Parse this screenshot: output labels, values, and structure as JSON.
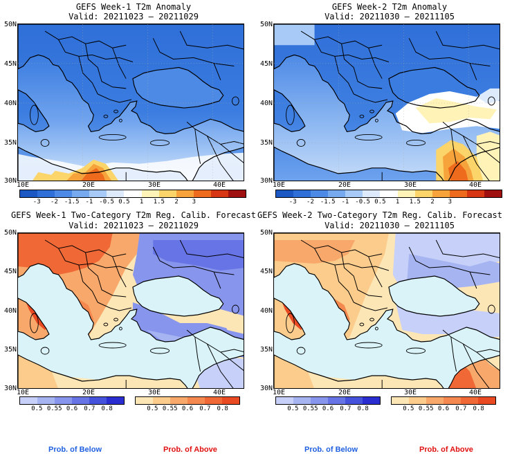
{
  "panels": [
    {
      "title": "GEFS Week-1 T2m Anomaly",
      "valid": "Valid: 20211023 – 20211029"
    },
    {
      "title": "GEFS Week-2 T2m Anomaly",
      "valid": "Valid: 20211030 – 20211105"
    },
    {
      "title": "GEFS Week-1 Two-Category T2m Reg. Calib. Forecast",
      "valid": "Valid: 20211023 – 20211029"
    },
    {
      "title": "GEFS Week-2 Two-Category T2m Reg. Calib. Forecast",
      "valid": "Valid: 20211030 – 20211105"
    }
  ],
  "lat_ticks": [
    "50N",
    "45N",
    "40N",
    "35N",
    "30N"
  ],
  "lon_ticks": [
    "10E",
    "20E",
    "30E",
    "40E"
  ],
  "anomaly_legend": {
    "labels": [
      "-3",
      "-2",
      "-1.5",
      "-1",
      "-0.5",
      "0.5",
      "1",
      "1.5",
      "2",
      "3"
    ],
    "colors": [
      "#1c58c4",
      "#2f6fd8",
      "#4d8ae6",
      "#77a9ef",
      "#a8caf6",
      "#dceafb",
      "#ffffff",
      "#fff3b8",
      "#fcd56a",
      "#f7a33c",
      "#ee6a1c",
      "#d63612",
      "#a01010"
    ]
  },
  "prob_legend": {
    "below_labels": [
      "0.5",
      "0.55",
      "0.6",
      "0.7",
      "0.8"
    ],
    "below_colors": [
      "#c6d0f8",
      "#a6b4f2",
      "#8795ec",
      "#6774e6",
      "#4552dc",
      "#2a2ed0"
    ],
    "above_labels": [
      "0.5",
      "0.55",
      "0.6",
      "0.7",
      "0.8"
    ],
    "above_colors": [
      "#fde6b6",
      "#fbcc8c",
      "#f8a86a",
      "#f5884e",
      "#f06836",
      "#ea4a22"
    ]
  },
  "footer": {
    "below": "Prob. of Below",
    "above": "Prob. of Above",
    "below_color": "#2060e0",
    "above_color": "#e01010"
  }
}
